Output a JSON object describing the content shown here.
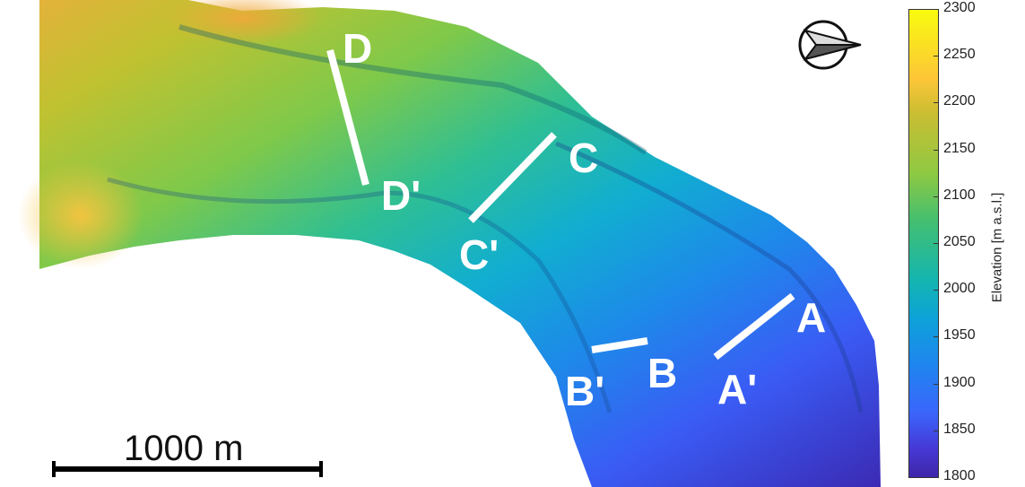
{
  "profiles": [
    {
      "start": "A",
      "end": "A'"
    },
    {
      "start": "B",
      "end": "B'"
    },
    {
      "start": "C",
      "end": "C'"
    },
    {
      "start": "D",
      "end": "D'"
    }
  ],
  "labels": {
    "A": "A",
    "A_prime": "A'",
    "B": "B",
    "B_prime": "B'",
    "C": "C",
    "C_prime": "C'",
    "D": "D",
    "D_prime": "D'"
  },
  "colorbar": {
    "label": "Elevation [m a.s.l.]",
    "ticks": [
      "2300",
      "2250",
      "2200",
      "2150",
      "2100",
      "2050",
      "2000",
      "1950",
      "1900",
      "1850",
      "1800"
    ],
    "min": 1800,
    "max": 2300,
    "colormap": "parula"
  },
  "scale_bar": {
    "label": "1000 m"
  },
  "north_arrow": {
    "icon": "north-arrow-icon",
    "direction": "east"
  }
}
